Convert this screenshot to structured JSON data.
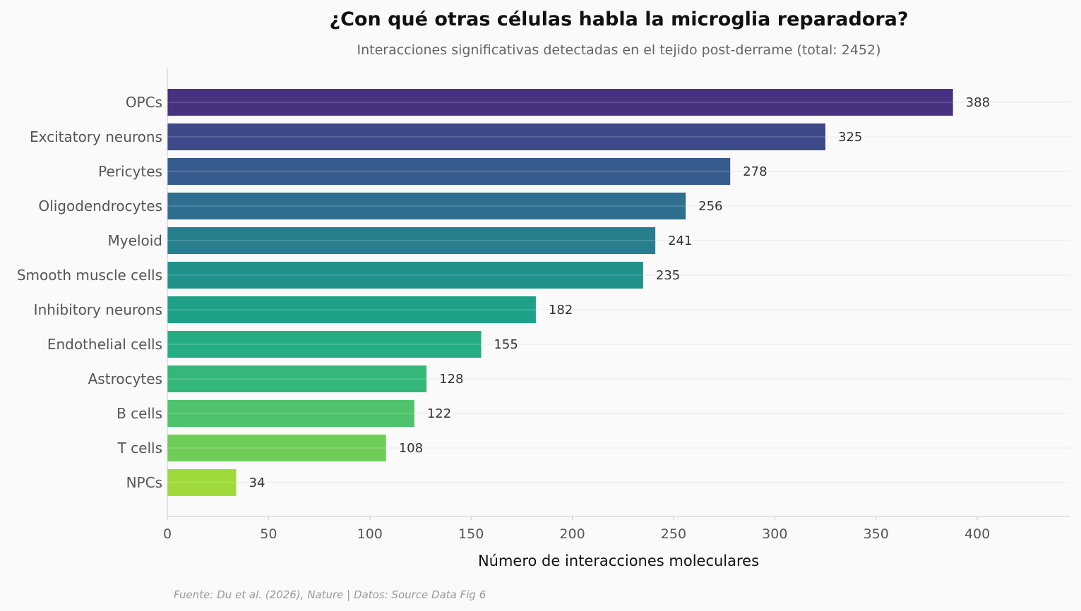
{
  "chart_data": {
    "type": "bar",
    "orientation": "horizontal",
    "title": "¿Con qué otras células habla la microglia reparadora?",
    "subtitle": "Interacciones significativas detectadas en el tejido post-derrame (total: 2452)",
    "xlabel": "Número de interacciones moleculares",
    "ylabel": "",
    "source": "Fuente: Du et al. (2026), Nature | Datos: Source Data Fig 6",
    "categories": [
      "OPCs",
      "Excitatory neurons",
      "Pericytes",
      "Oligodendrocytes",
      "Myeloid",
      "Smooth muscle cells",
      "Inhibitory neurons",
      "Endothelial cells",
      "Astrocytes",
      "B cells",
      "T cells",
      "NPCs"
    ],
    "values": [
      388,
      325,
      278,
      256,
      241,
      235,
      182,
      155,
      128,
      122,
      108,
      34
    ],
    "colors": [
      "#46327e",
      "#3e4989",
      "#365c8d",
      "#2e6e8e",
      "#277f8e",
      "#21918c",
      "#1fa187",
      "#25ac82",
      "#35b779",
      "#4ec36b",
      "#6ece58",
      "#9fda3a"
    ],
    "xlim": [
      0,
      446
    ],
    "xticks": [
      0,
      50,
      100,
      150,
      200,
      250,
      300,
      350,
      400
    ],
    "grid": true,
    "legend": "none"
  }
}
